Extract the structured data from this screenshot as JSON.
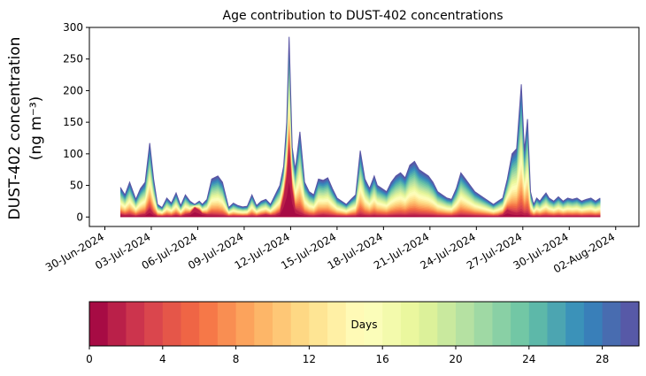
{
  "chart_data": {
    "type": "area",
    "title": "Age contribution to DUST-402 concentrations",
    "ylabel_line1": "DUST-402 concentration",
    "ylabel_line2": "(ng m⁻³)",
    "xlabel": "",
    "ylim": [
      -15,
      300
    ],
    "yticks": [
      0,
      50,
      100,
      150,
      200,
      250,
      300
    ],
    "x_range_days": [
      -1.0,
      34.5
    ],
    "xtick_labels": [
      "30-Jun-2024",
      "03-Jul-2024",
      "06-Jul-2024",
      "09-Jul-2024",
      "12-Jul-2024",
      "15-Jul-2024",
      "18-Jul-2024",
      "21-Jul-2024",
      "24-Jul-2024",
      "27-Jul-2024",
      "30-Jul-2024",
      "02-Aug-2024"
    ],
    "xtick_days": [
      0,
      3,
      6,
      9,
      12,
      15,
      18,
      21,
      24,
      27,
      30,
      33
    ],
    "series_description": "stacked contributions by age in days (0-30), top envelope = total concentration",
    "total_x_days": [
      1.0,
      1.3,
      1.6,
      2.0,
      2.3,
      2.6,
      2.9,
      3.15,
      3.4,
      3.7,
      4.0,
      4.3,
      4.6,
      4.9,
      5.2,
      5.5,
      5.8,
      6.1,
      6.3,
      6.6,
      6.9,
      7.3,
      7.6,
      8.0,
      8.3,
      8.6,
      8.9,
      9.2,
      9.5,
      9.8,
      10.1,
      10.4,
      10.7,
      11.0,
      11.3,
      11.55,
      11.75,
      11.9,
      12.1,
      12.3,
      12.6,
      12.9,
      13.2,
      13.5,
      13.8,
      14.1,
      14.4,
      14.7,
      15.0,
      15.3,
      15.6,
      15.9,
      16.2,
      16.5,
      16.8,
      17.1,
      17.4,
      17.6,
      17.9,
      18.2,
      18.5,
      18.8,
      19.1,
      19.4,
      19.7,
      20.0,
      20.3,
      20.6,
      20.9,
      21.2,
      21.5,
      21.8,
      22.1,
      22.4,
      22.7,
      23.0,
      23.3,
      23.6,
      23.9,
      24.2,
      24.5,
      24.8,
      25.1,
      25.4,
      25.7,
      26.0,
      26.3,
      26.6,
      26.9,
      27.1,
      27.3,
      27.5,
      27.7,
      27.9,
      28.1,
      28.3,
      28.5,
      28.7,
      29.0,
      29.3,
      29.6,
      29.9,
      30.2,
      30.5,
      30.8,
      31.1,
      31.4,
      31.7,
      32.0
    ],
    "total_values": [
      47,
      35,
      55,
      28,
      45,
      55,
      117,
      60,
      20,
      15,
      30,
      22,
      38,
      18,
      35,
      25,
      20,
      25,
      20,
      28,
      60,
      65,
      55,
      15,
      22,
      18,
      16,
      17,
      35,
      18,
      25,
      28,
      20,
      35,
      50,
      80,
      150,
      285,
      110,
      75,
      135,
      55,
      40,
      35,
      60,
      58,
      62,
      45,
      30,
      25,
      20,
      28,
      35,
      105,
      60,
      45,
      65,
      50,
      45,
      40,
      55,
      65,
      70,
      62,
      82,
      88,
      75,
      70,
      65,
      55,
      40,
      35,
      30,
      28,
      45,
      70,
      60,
      50,
      40,
      35,
      30,
      25,
      20,
      25,
      30,
      60,
      100,
      108,
      210,
      105,
      155,
      40,
      20,
      30,
      25,
      32,
      38,
      30,
      25,
      32,
      25,
      30,
      28,
      30,
      25,
      28,
      30,
      25,
      30
    ],
    "young_age_values": [
      3,
      2,
      2,
      1,
      2,
      3,
      10,
      3,
      1,
      1,
      1,
      1,
      2,
      1,
      3,
      5,
      15,
      10,
      5,
      3,
      2,
      1,
      1,
      1,
      1,
      1,
      1,
      1,
      1,
      1,
      2,
      3,
      2,
      2,
      5,
      30,
      60,
      105,
      40,
      10,
      3,
      2,
      1,
      1,
      1,
      2,
      1,
      1,
      1,
      1,
      1,
      1,
      1,
      1,
      1,
      1,
      1,
      1,
      1,
      1,
      1,
      1,
      1,
      1,
      1,
      1,
      1,
      1,
      1,
      1,
      1,
      1,
      1,
      1,
      1,
      1,
      1,
      1,
      1,
      1,
      1,
      1,
      1,
      1,
      3,
      10,
      5,
      3,
      2,
      2,
      1,
      1,
      1,
      1,
      1,
      1,
      1,
      1,
      1,
      1,
      1,
      1,
      1,
      1,
      1,
      1,
      1,
      1,
      1
    ],
    "colorbar": {
      "label": "Days",
      "min": 0,
      "max": 30,
      "ticks": [
        0,
        4,
        8,
        12,
        16,
        20,
        24,
        28
      ],
      "n_bins": 30,
      "colormap": "Spectral",
      "stops": [
        "#9e0142",
        "#d53e4f",
        "#f46d43",
        "#fdae61",
        "#fee08b",
        "#ffffbf",
        "#e6f598",
        "#abdda4",
        "#66c2a5",
        "#3288bd",
        "#5e4fa2"
      ]
    }
  }
}
